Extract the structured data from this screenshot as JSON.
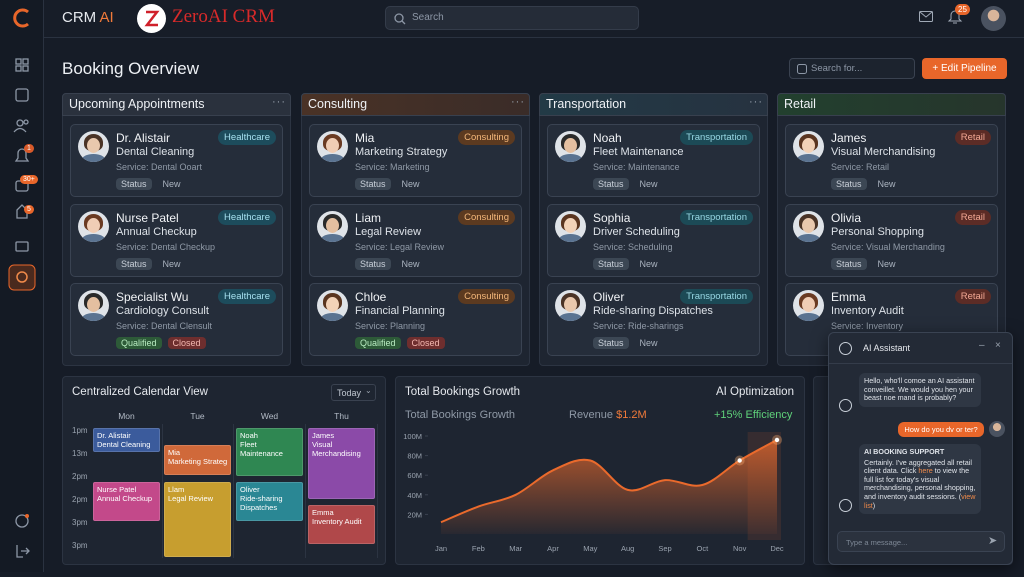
{
  "sidebar": {
    "badges": [
      "1",
      "30+",
      "5"
    ]
  },
  "header": {
    "brand": "CRM",
    "brand_accent": "AI",
    "logo_text": "ZeroAI CRM",
    "search_placeholder": "Search",
    "notification_count": "25"
  },
  "toolbar": {
    "title": "Booking Overview",
    "search_placeholder": "Search for...",
    "button": "+ Edit Pipeline"
  },
  "columns": [
    {
      "title": "Upcoming Appointments",
      "cards": [
        {
          "name": "Dr. Alistair",
          "tag": "Healthcare",
          "title": "Dental Cleaning",
          "service": "Service: Dental Ooart",
          "statuses": [
            "Status",
            "New"
          ]
        },
        {
          "name": "Nurse Patel",
          "tag": "Healthcare",
          "title": "Annual Checkup",
          "service": "Service: Dental Checkup",
          "statuses": [
            "Status",
            "New"
          ]
        },
        {
          "name": "Specialist Wu",
          "tag": "Healthcare",
          "title": "Cardiology Consult",
          "service": "Service: Dental Clensult",
          "statuses": [
            "Qualified",
            "Closed"
          ]
        }
      ]
    },
    {
      "title": "Consulting",
      "cards": [
        {
          "name": "Mia",
          "tag": "Consulting",
          "title": "Marketing Strategy",
          "service": "Service: Marketing",
          "statuses": [
            "Status",
            "New"
          ]
        },
        {
          "name": "Liam",
          "tag": "Consulting",
          "title": "Legal Review",
          "service": "Service: Legal Review",
          "statuses": [
            "Status",
            "New"
          ]
        },
        {
          "name": "Chloe",
          "tag": "Consulting",
          "title": "Financial Planning",
          "service": "Service: Planning",
          "statuses": [
            "Qualified",
            "Closed"
          ]
        }
      ]
    },
    {
      "title": "Transportation",
      "cards": [
        {
          "name": "Noah",
          "tag": "Transportation",
          "title": "Fleet Maintenance",
          "service": "Service: Maintenance",
          "statuses": [
            "Status",
            "New"
          ]
        },
        {
          "name": "Sophia",
          "tag": "Transportation",
          "title": "Driver Scheduling",
          "service": "Service: Scheduling",
          "statuses": [
            "Status",
            "New"
          ]
        },
        {
          "name": "Oliver",
          "tag": "Transportation",
          "title": "Ride-sharing Dispatches",
          "service": "Service: Ride-sharings",
          "statuses": [
            "Status",
            "New"
          ]
        }
      ]
    },
    {
      "title": "Retail",
      "cards": [
        {
          "name": "James",
          "tag": "Retail",
          "title": "Visual Merchandising",
          "service": "Service: Retail",
          "statuses": [
            "Status",
            "New"
          ]
        },
        {
          "name": "Olivia",
          "tag": "Retail",
          "title": "Personal Shopping",
          "service": "Service: Visual Merchanding",
          "statuses": [
            "Status",
            "New"
          ]
        },
        {
          "name": "Emma",
          "tag": "Retail",
          "title": "Inventory Audit",
          "service": "Service: Inventory",
          "statuses": []
        }
      ]
    }
  ],
  "calendar": {
    "title": "Centralized Calendar View",
    "filter": "Today",
    "times": [
      "1pm",
      "13m",
      "2pm",
      "2pm",
      "3pm",
      "3pm"
    ],
    "days": [
      {
        "label": "Mon",
        "events": [
          {
            "lines": [
              "Dr. Alistair",
              "Dental Cleaning"
            ]
          },
          {
            "lines": [
              "Nurse Patel",
              "Annual Checkup"
            ]
          }
        ]
      },
      {
        "label": "Tue",
        "events": [
          {
            "lines": [
              "Mia",
              "Marketing Strategy"
            ]
          },
          {
            "lines": [
              "Llam",
              "Legal Review"
            ]
          }
        ]
      },
      {
        "label": "Wed",
        "events": [
          {
            "lines": [
              "Noah",
              "Fleet",
              "Maintenance"
            ]
          },
          {
            "lines": [
              "Oliver",
              "Ride-sharing",
              "Dispatches"
            ]
          }
        ]
      },
      {
        "label": "Thu",
        "events": [
          {
            "lines": [
              "James",
              "Visual",
              "Merchandising"
            ]
          },
          {
            "lines": [
              "Emma",
              "Inventory Audit"
            ]
          }
        ]
      }
    ]
  },
  "growth": {
    "title": "Total Bookings Growth",
    "side_title": "AI Optimization",
    "subtitle": "Total Bookings Growth",
    "revenue_label": "Revenue",
    "revenue_value": "$1.2M",
    "efficiency": "+15% Efficiency"
  },
  "chart_data": {
    "type": "area",
    "categories": [
      "Jan",
      "Feb",
      "Mar",
      "Apr",
      "May",
      "Aug",
      "Sep",
      "Oct",
      "Nov",
      "Dec"
    ],
    "values": [
      12,
      28,
      40,
      65,
      75,
      45,
      55,
      50,
      75,
      96
    ],
    "color": "#ea6a2c",
    "ylim": [
      0,
      100
    ],
    "yticks": [
      {
        "value": 20,
        "label": "20M"
      },
      {
        "value": 40,
        "label": "40M"
      },
      {
        "value": 60,
        "label": "60M"
      },
      {
        "value": 80,
        "label": "80M"
      },
      {
        "value": 100,
        "label": "100M"
      }
    ],
    "grid": false
  },
  "chat": {
    "title": "AI Assistant",
    "bot_message": "Hello, who'll comoe an AI assistant conveillet. We would you hen your beast noe mand is probably?",
    "user_message": "How do you dv or ter?",
    "support_title": "AI BOOKING SUPPORT",
    "support_parts": [
      "Certainly. I've aggregated all retail client data. Click ",
      "here",
      " to view the full list for today's visual merchandising, personal shopping, and inventory audit sessions. (",
      "view list",
      ")"
    ],
    "input_placeholder": "Type a message..."
  }
}
